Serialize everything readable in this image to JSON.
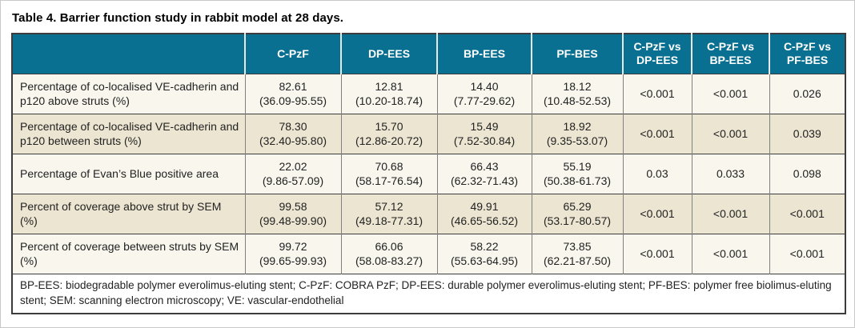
{
  "title": "Table 4. Barrier function study in rabbit model at 28 days.",
  "colors": {
    "header_bg": "#0a7091",
    "row_beige": "#ebe5d1",
    "row_light": "#f8f6ed"
  },
  "table": {
    "columns": [
      "",
      "C-PzF",
      "DP-EES",
      "BP-EES",
      "PF-BES",
      "C-PzF vs DP-EES",
      "C-PzF vs BP-EES",
      "C-PzF vs PF-BES"
    ],
    "rows": [
      {
        "label": "Percentage of co-localised VE-cadherin and p120 above struts (%)",
        "cells": [
          {
            "value": "82.61",
            "range": "(36.09-95.55)"
          },
          {
            "value": "12.81",
            "range": "(10.20-18.74)"
          },
          {
            "value": "14.40",
            "range": "(7.77-29.62)"
          },
          {
            "value": "18.12",
            "range": "(10.48-52.53)"
          }
        ],
        "pvalues": [
          "<0.001",
          "<0.001",
          "0.026"
        ]
      },
      {
        "label": "Percentage of co-localised VE-cadherin and p120 between struts (%)",
        "cells": [
          {
            "value": "78.30",
            "range": "(32.40-95.80)"
          },
          {
            "value": "15.70",
            "range": "(12.86-20.72)"
          },
          {
            "value": "15.49",
            "range": "(7.52-30.84)"
          },
          {
            "value": "18.92",
            "range": "(9.35-53.07)"
          }
        ],
        "pvalues": [
          "<0.001",
          "<0.001",
          "0.039"
        ]
      },
      {
        "label": "Percentage of Evan’s Blue positive area",
        "cells": [
          {
            "value": "22.02",
            "range": "(9.86-57.09)"
          },
          {
            "value": "70.68",
            "range": "(58.17-76.54)"
          },
          {
            "value": "66.43",
            "range": "(62.32-71.43)"
          },
          {
            "value": "55.19",
            "range": "(50.38-61.73)"
          }
        ],
        "pvalues": [
          "0.03",
          "0.033",
          "0.098"
        ]
      },
      {
        "label": "Percent of coverage above strut by SEM (%)",
        "cells": [
          {
            "value": "99.58",
            "range": "(99.48-99.90)"
          },
          {
            "value": "57.12",
            "range": "(49.18-77.31)"
          },
          {
            "value": "49.91",
            "range": "(46.65-56.52)"
          },
          {
            "value": "65.29",
            "range": "(53.17-80.57)"
          }
        ],
        "pvalues": [
          "<0.001",
          "<0.001",
          "<0.001"
        ]
      },
      {
        "label": "Percent of coverage between struts by SEM (%)",
        "cells": [
          {
            "value": "99.72",
            "range": "(99.65-99.93)"
          },
          {
            "value": "66.06",
            "range": "(58.08-83.27)"
          },
          {
            "value": "58.22",
            "range": "(55.63-64.95)"
          },
          {
            "value": "73.85",
            "range": "(62.21-87.50)"
          }
        ],
        "pvalues": [
          "<0.001",
          "<0.001",
          "<0.001"
        ]
      }
    ]
  },
  "footnote": "BP-EES: biodegradable polymer everolimus-eluting stent; C-PzF: COBRA PzF; DP-EES: durable polymer everolimus-eluting stent; PF-BES: polymer free biolimus-eluting stent; SEM: scanning electron microscopy; VE: vascular-endothelial"
}
